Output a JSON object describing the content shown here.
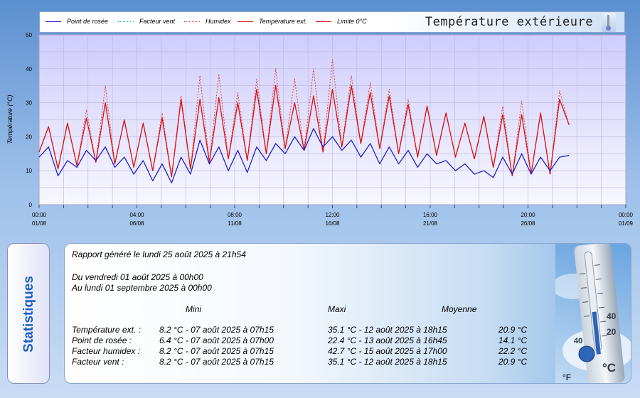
{
  "legend": [
    {
      "label": "Point de rosée",
      "color": "#2222cc",
      "dash": "solid"
    },
    {
      "label": "Facteur vent",
      "color": "#22aadd",
      "dash": "dotted"
    },
    {
      "label": "Humidex",
      "color": "#e04040",
      "dash": "dotted"
    },
    {
      "label": "Température ext.",
      "color": "#dd1111",
      "dash": "solid"
    },
    {
      "label": "Limite 0°C",
      "color": "#dd1111",
      "dash": "solid"
    }
  ],
  "chart_title": "Température extérieure",
  "chart_data": {
    "type": "line",
    "ylabel": "Température (°C)",
    "ylim": [
      0,
      50
    ],
    "yticks": [
      0,
      10,
      20,
      30,
      40,
      50
    ],
    "xlim_days": [
      0,
      31
    ],
    "x_ticks": [
      {
        "day": 0,
        "time": "00:00",
        "date": "01/08"
      },
      {
        "day": 5.1667,
        "time": "04:00",
        "date": "06/08"
      },
      {
        "day": 10.3333,
        "time": "08:00",
        "date": "11/08"
      },
      {
        "day": 15.5,
        "time": "12:00",
        "date": "16/08"
      },
      {
        "day": 20.6667,
        "time": "16:00",
        "date": "21/08"
      },
      {
        "day": 25.8333,
        "time": "20:00",
        "date": "26/08"
      },
      {
        "day": 31,
        "time": "00:00",
        "date": "01/09"
      }
    ],
    "series": [
      {
        "name": "Température ext.",
        "color": "#dd1111",
        "dash": "solid",
        "x_start": "2025-08-01",
        "step_days": 0.5,
        "values": [
          15.5,
          23.0,
          10.5,
          24.0,
          11.5,
          25.5,
          12.5,
          30.0,
          12.0,
          25.0,
          11.0,
          24.0,
          10.0,
          25.5,
          8.2,
          31.0,
          10.5,
          31.0,
          12.5,
          31.5,
          13.5,
          30.0,
          13.0,
          34.0,
          15.0,
          35.1,
          16.5,
          30.0,
          16.0,
          32.0,
          15.5,
          34.0,
          17.0,
          35.0,
          18.0,
          33.0,
          16.5,
          32.0,
          15.0,
          29.5,
          14.0,
          29.0,
          14.5,
          27.0,
          14.0,
          24.0,
          13.5,
          26.0,
          11.0,
          26.5,
          8.5,
          26.5,
          9.0,
          27.0,
          9.0,
          31.0,
          23.5
        ]
      },
      {
        "name": "Humidex",
        "color": "#e04040",
        "dash": "dotted",
        "x_start": "2025-08-01",
        "step_days": 0.5,
        "values": [
          15.5,
          23.0,
          10.5,
          24.0,
          11.5,
          28.0,
          12.5,
          35.0,
          12.0,
          25.0,
          11.0,
          24.0,
          10.0,
          27.0,
          8.2,
          32.0,
          10.5,
          38.0,
          12.5,
          38.5,
          13.5,
          33.0,
          13.0,
          37.0,
          15.0,
          40.0,
          16.5,
          37.0,
          16.0,
          40.0,
          15.5,
          42.7,
          17.0,
          38.0,
          18.0,
          36.0,
          16.5,
          34.0,
          15.0,
          31.0,
          14.0,
          29.0,
          14.5,
          27.0,
          14.0,
          24.0,
          13.5,
          26.0,
          11.0,
          29.0,
          8.5,
          30.5,
          9.0,
          27.0,
          9.0,
          33.5,
          23.5
        ]
      },
      {
        "name": "Point de rosée",
        "color": "#2222cc",
        "dash": "solid",
        "x_start": "2025-08-01",
        "step_days": 0.5,
        "values": [
          14.0,
          17.0,
          8.5,
          13.0,
          11.0,
          16.0,
          13.0,
          17.0,
          11.0,
          14.0,
          9.0,
          13.0,
          7.0,
          12.0,
          6.4,
          14.0,
          9.0,
          19.0,
          12.0,
          17.0,
          10.0,
          16.0,
          9.5,
          17.0,
          13.0,
          18.0,
          15.0,
          20.0,
          16.0,
          22.4,
          17.0,
          20.0,
          16.0,
          19.0,
          14.0,
          18.0,
          12.0,
          17.0,
          12.0,
          16.0,
          11.0,
          15.0,
          12.0,
          13.0,
          10.0,
          12.0,
          9.0,
          10.0,
          8.0,
          14.0,
          9.0,
          15.0,
          9.0,
          14.0,
          10.0,
          14.0,
          14.5
        ]
      },
      {
        "name": "Facteur vent",
        "color": "#22aadd",
        "dash": "dotted",
        "x_start": "2025-08-01",
        "step_days": 0.5,
        "values": [
          15.5,
          23.0,
          10.5,
          24.0,
          11.5,
          25.5,
          12.5,
          30.0,
          12.0,
          25.0,
          11.0,
          24.0,
          10.0,
          25.5,
          8.2,
          31.0,
          10.5,
          31.0,
          12.5,
          31.5,
          13.5,
          30.0,
          13.0,
          34.0,
          15.0,
          35.1,
          16.5,
          30.0,
          16.0,
          32.0,
          15.5,
          34.0,
          17.0,
          35.0,
          18.0,
          33.0,
          16.5,
          32.0,
          15.0,
          29.5,
          14.0,
          29.0,
          14.5,
          27.0,
          14.0,
          24.0,
          13.5,
          26.0,
          11.0,
          26.5,
          8.5,
          26.5,
          9.0,
          27.0,
          9.0,
          31.0,
          23.5
        ]
      }
    ]
  },
  "stats": {
    "tab_label": "Statistiques",
    "generated": "Rapport généré le lundi 25 août 2025 à 21h54",
    "from": "Du vendredi 01 août 2025 à 00h00",
    "to": "Au lundi 01 septembre 2025 à 00h00",
    "headers": {
      "mini": "Mini",
      "maxi": "Maxi",
      "moyenne": "Moyenne"
    },
    "rows": [
      {
        "label": "Température ext. :",
        "mini": "8.2 °C - 07 août 2025 à 07h15",
        "maxi": "35.1 °C - 12 août 2025 à 18h15",
        "avg": "20.9 °C"
      },
      {
        "label": "Point de rosée :",
        "mini": "6.4 °C - 07 août 2025 à 07h00",
        "maxi": "22.4 °C - 13 août 2025 à 16h45",
        "avg": "14.1 °C"
      },
      {
        "label": "Facteur humidex :",
        "mini": "8.2 °C - 07 août 2025 à 07h15",
        "maxi": "42.7 °C - 15 août 2025 à 17h00",
        "avg": "22.2 °C"
      },
      {
        "label": "Facteur vent :",
        "mini": "8.2 °C - 07 août 2025 à 07h15",
        "maxi": "35.1 °C - 12 août 2025 à 18h15",
        "avg": "20.9 °C"
      }
    ],
    "thermometer_labels": {
      "f": "°F",
      "c": "°C",
      "ticks": [
        "40",
        "20",
        "40"
      ]
    }
  }
}
